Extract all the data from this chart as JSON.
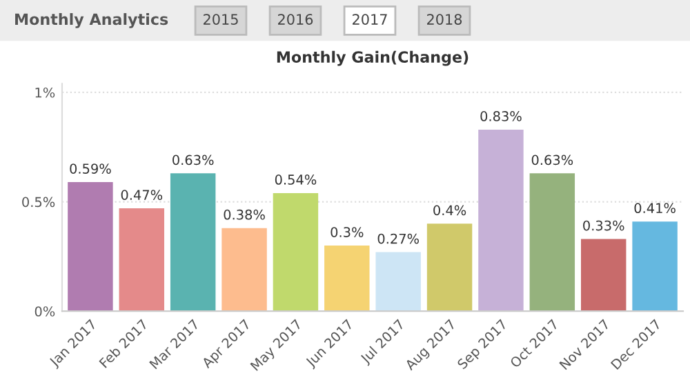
{
  "chart_data": {
    "type": "bar",
    "title": "Monthly Analytics",
    "subtitle": "Monthly Gain(Change)",
    "annotations": [
      "2015",
      "2016",
      "2017",
      "2018"
    ],
    "categories": [
      "Jan 2017",
      "Feb 2017",
      "Mar 2017",
      "Apr 2017",
      "May 2017",
      "Jun 2017",
      "Jul 2017",
      "Aug 2017",
      "Sep 2017",
      "Oct 2017",
      "Nov 2017",
      "Dec 2017"
    ],
    "values": [
      0.59,
      0.47,
      0.63,
      0.38,
      0.54,
      0.3,
      0.27,
      0.4,
      0.83,
      0.63,
      0.33,
      0.41
    ],
    "value_labels": [
      "0.59%",
      "0.47%",
      "0.63%",
      "0.38%",
      "0.54%",
      "0.3%",
      "0.27%",
      "0.4%",
      "0.83%",
      "0.63%",
      "0.33%",
      "0.41%"
    ],
    "colors": [
      "#b07cb0",
      "#e48a8a",
      "#5ab3b0",
      "#fdbc8e",
      "#c0d96c",
      "#f5d372",
      "#cde5f5",
      "#d0c96a",
      "#c6b1d7",
      "#95b27d",
      "#c86b6b",
      "#65b8e0"
    ],
    "ylim": [
      0,
      1.04
    ],
    "yticks": [
      {
        "value": 0,
        "label": "0%"
      },
      {
        "value": 0.5,
        "label": "0.5%"
      },
      {
        "value": 1,
        "label": "1%"
      }
    ],
    "grid": "y",
    "legend": false
  }
}
